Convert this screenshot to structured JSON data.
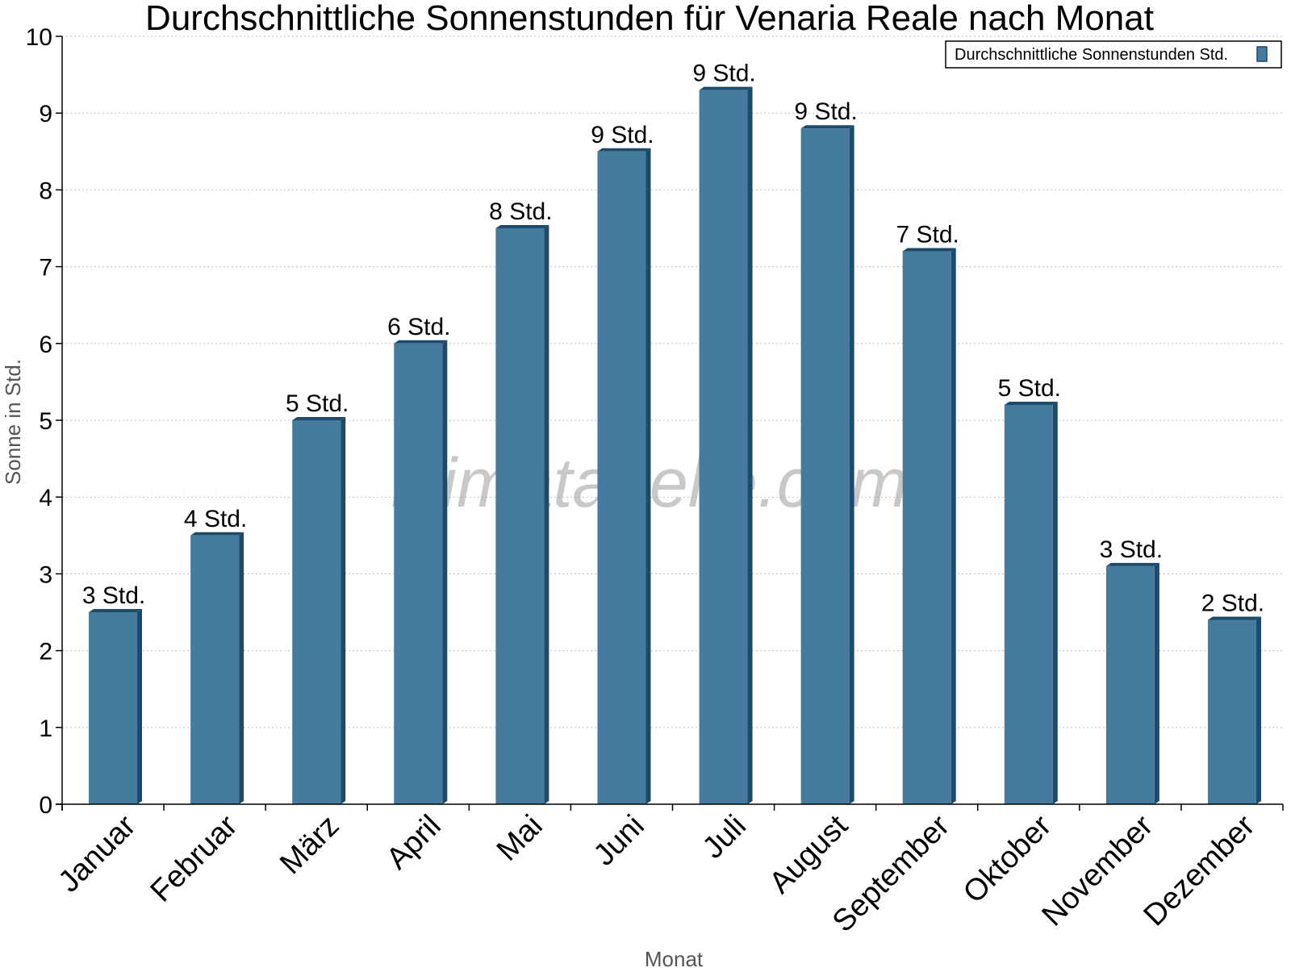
{
  "chart_data": {
    "type": "bar",
    "title": "Durchschnittliche Sonnenstunden für Venaria Reale nach Monat",
    "xlabel": "Monat",
    "ylabel": "Sonne in Std.",
    "ylim": [
      0,
      10
    ],
    "yticks": [
      "0",
      "1",
      "2",
      "3",
      "4",
      "5",
      "6",
      "7",
      "8",
      "9",
      "10"
    ],
    "grid": true,
    "legend_position": "top-right",
    "categories": [
      "Januar",
      "Februar",
      "März",
      "April",
      "Mai",
      "Juni",
      "Juli",
      "August",
      "September",
      "Oktober",
      "November",
      "Dezember"
    ],
    "series": [
      {
        "name": "Durchschnittliche Sonnenstunden Std.",
        "values": [
          2.5,
          3.5,
          5.0,
          6.0,
          7.5,
          8.5,
          9.3,
          8.8,
          7.2,
          5.2,
          3.1,
          2.4
        ],
        "labels": [
          "3 Std.",
          "4 Std.",
          "5 Std.",
          "6 Std.",
          "8 Std.",
          "9 Std.",
          "9 Std.",
          "9 Std.",
          "7 Std.",
          "5 Std.",
          "3 Std.",
          "2 Std."
        ],
        "color": "#457b9d",
        "edge_color": "#1b4a6b"
      }
    ],
    "watermark": "klimatabelle.com"
  }
}
